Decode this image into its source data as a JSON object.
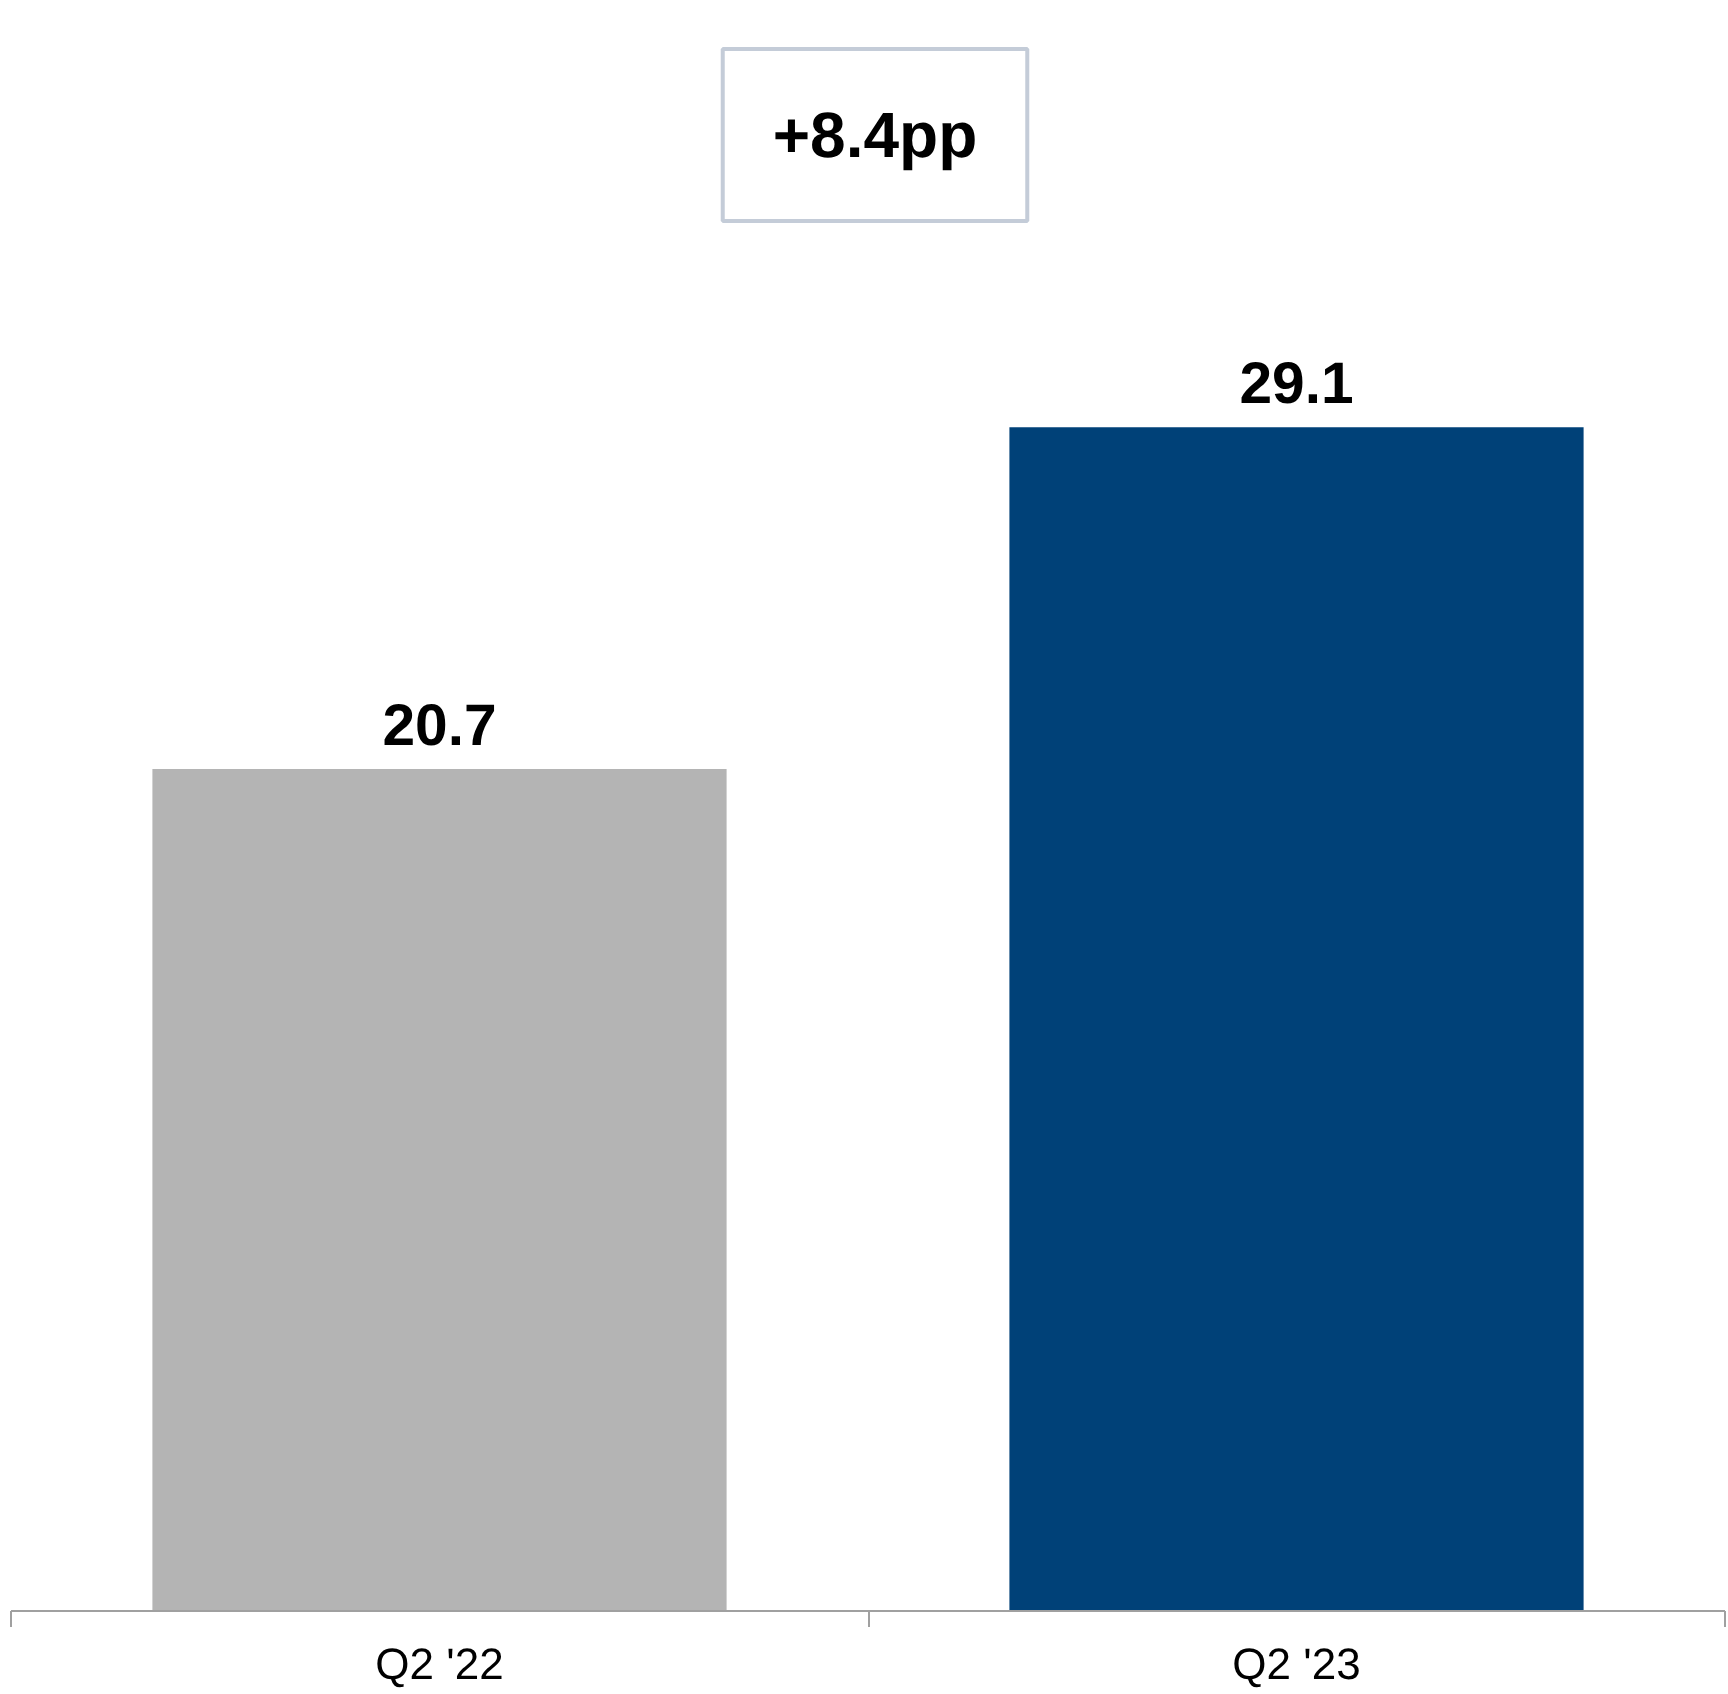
{
  "chart_data": {
    "type": "bar",
    "categories": [
      "Q2 '22",
      "Q2 '23"
    ],
    "values": [
      20.7,
      29.1
    ],
    "colors": [
      "#b4b4b4",
      "#004178"
    ],
    "data_labels": true,
    "annotations": [
      "+8.4pp"
    ],
    "grid": false
  }
}
